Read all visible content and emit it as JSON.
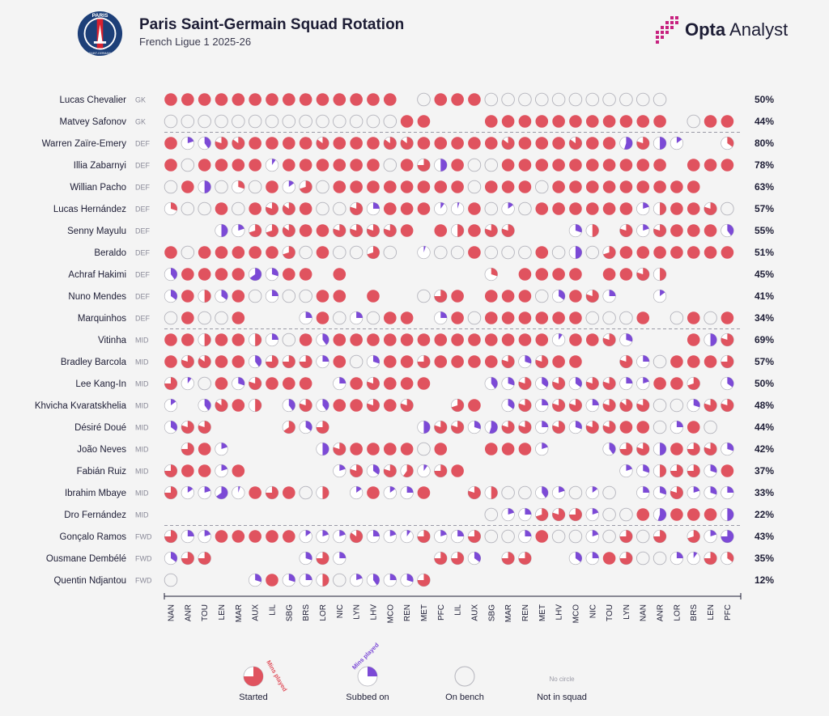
{
  "header": {
    "title": "Paris Saint-Germain Squad Rotation",
    "subtitle": "French Ligue 1 2025-26",
    "brand_bold": "Opta",
    "brand_light": "Analyst",
    "crest_text_top": "PARIS",
    "crest_text_bottom": "SAINT-GERMAIN"
  },
  "colors": {
    "started": "#e0535f",
    "subbed": "#7c4ad6",
    "bench_stroke": "#b4b4bc",
    "separator": "#9a9aa6",
    "crest_blue": "#1d3f78",
    "crest_red": "#d9202e",
    "brand_pink": "#c7217f"
  },
  "legend": {
    "started": "Started",
    "subbed": "Subbed on",
    "bench": "On bench",
    "not_in_squad": "Not in squad",
    "no_circle": "No circle",
    "mins_played": "Mins played"
  },
  "chart_data": {
    "type": "table",
    "matches": [
      "NAN",
      "ANR",
      "TOU",
      "LEN",
      "MAR",
      "AUX",
      "LIL",
      "SBG",
      "BRS",
      "LOR",
      "NIC",
      "LYN",
      "LHV",
      "MCO",
      "REN",
      "MET",
      "PFC",
      "LIL",
      "AUX",
      "SBG",
      "MAR",
      "REN",
      "MET",
      "LHV",
      "MCO",
      "NIC",
      "TOU",
      "LYN",
      "NAN",
      "ANR",
      "LOR",
      "BRS",
      "LEN",
      "PFC"
    ],
    "cell_encoding": "S=started (full), S75=started fraction, U30=subbed on fraction, B=on bench, -=not in squad",
    "players": [
      {
        "name": "Lucas Chevalier",
        "pos": "GK",
        "pct": "50%",
        "cells": [
          "S",
          "S",
          "S",
          "S",
          "S",
          "S",
          "S",
          "S",
          "S",
          "S",
          "S",
          "S",
          "S",
          "S",
          "-",
          "B",
          "S",
          "S",
          "S",
          "B",
          "B",
          "B",
          "B",
          "B",
          "B",
          "B",
          "B",
          "B",
          "B",
          "B",
          "-",
          "-",
          "-",
          "-"
        ]
      },
      {
        "name": "Matvey Safonov",
        "pos": "GK",
        "pct": "44%",
        "cells": [
          "B",
          "B",
          "B",
          "B",
          "B",
          "B",
          "B",
          "B",
          "B",
          "B",
          "B",
          "B",
          "B",
          "B",
          "S",
          "S",
          "-",
          "-",
          "-",
          "S",
          "S",
          "S",
          "S",
          "S",
          "S",
          "S",
          "S",
          "S",
          "S",
          "S",
          "-",
          "B",
          "S",
          "S"
        ]
      },
      {
        "name": "Warren Zaïre-Emery",
        "pos": "DEF",
        "pct": "80%",
        "cells": [
          "S",
          "U20",
          "U40",
          "S80",
          "S85",
          "S",
          "S",
          "S",
          "S",
          "S85",
          "S",
          "S",
          "S",
          "S85",
          "S85",
          "S",
          "S",
          "S",
          "S",
          "S",
          "S85",
          "S",
          "S",
          "S",
          "S85",
          "S",
          "S",
          "U55",
          "S80",
          "U50",
          "U15",
          "-",
          "-",
          "S35"
        ]
      },
      {
        "name": "Illia Zabarnyi",
        "pos": "DEF",
        "pct": "78%",
        "cells": [
          "S",
          "B",
          "S",
          "S",
          "S",
          "S",
          "U10",
          "S",
          "S",
          "S",
          "S",
          "S",
          "S",
          "B",
          "S",
          "S75",
          "U50",
          "S",
          "B",
          "B",
          "S",
          "S",
          "S",
          "S",
          "S",
          "S",
          "S",
          "S",
          "S",
          "S",
          "-",
          "S",
          "S",
          "S"
        ]
      },
      {
        "name": "Willian Pacho",
        "pos": "DEF",
        "pct": "63%",
        "cells": [
          "B",
          "S",
          "U50",
          "B",
          "S30",
          "B",
          "S",
          "U15",
          "S70",
          "B",
          "S",
          "S",
          "S",
          "S",
          "S",
          "S",
          "S",
          "S",
          "B",
          "S",
          "S",
          "S",
          "B",
          "S",
          "S",
          "S",
          "S",
          "S",
          "S",
          "S",
          "S",
          "S",
          "-",
          "-"
        ]
      },
      {
        "name": "Lucas Hernández",
        "pos": "DEF",
        "pct": "57%",
        "cells": [
          "S30",
          "B",
          "B",
          "S",
          "B",
          "S",
          "S80",
          "S85",
          "S",
          "B",
          "B",
          "S80",
          "U25",
          "S",
          "S",
          "S",
          "U10",
          "U5",
          "S",
          "B",
          "U15",
          "B",
          "S",
          "S",
          "S",
          "S",
          "S",
          "S",
          "U20",
          "S50",
          "S",
          "S",
          "S80",
          "B"
        ]
      },
      {
        "name": "Senny Mayulu",
        "pos": "DEF",
        "pct": "55%",
        "cells": [
          "-",
          "-",
          "-",
          "U50",
          "U20",
          "S70",
          "S70",
          "S85",
          "S",
          "S",
          "S80",
          "S80",
          "S80",
          "S80",
          "S",
          "-",
          "S",
          "S50",
          "S",
          "S80",
          "S80",
          "-",
          "-",
          "-",
          "U30",
          "S50",
          "-",
          "S80",
          "U20",
          "S80",
          "S",
          "S",
          "S",
          "U40"
        ]
      },
      {
        "name": "Beraldo",
        "pos": "DEF",
        "pct": "51%",
        "cells": [
          "S",
          "B",
          "S",
          "S",
          "S",
          "S",
          "S",
          "S70",
          "B",
          "S",
          "B",
          "B",
          "S70",
          "B",
          "-",
          "U5",
          "B",
          "B",
          "S",
          "B",
          "B",
          "B",
          "S",
          "B",
          "U50",
          "B",
          "S70",
          "S",
          "S",
          "S",
          "S",
          "S",
          "S",
          "S"
        ]
      },
      {
        "name": "Achraf Hakimi",
        "pos": "DEF",
        "pct": "45%",
        "cells": [
          "U40",
          "S",
          "S",
          "S",
          "S",
          "U65",
          "U30",
          "S",
          "S",
          "-",
          "S",
          "-",
          "-",
          "-",
          "-",
          "-",
          "-",
          "-",
          "-",
          "S30",
          "-",
          "S",
          "S",
          "S",
          "S",
          "-",
          "S",
          "S",
          "S80",
          "S50",
          "-",
          "-",
          "-",
          "-"
        ]
      },
      {
        "name": "Nuno Mendes",
        "pos": "DEF",
        "pct": "41%",
        "cells": [
          "U35",
          "S",
          "S50",
          "U35",
          "S",
          "B",
          "U25",
          "B",
          "B",
          "S",
          "S",
          "-",
          "S",
          "-",
          "-",
          "B",
          "S75",
          "S",
          "-",
          "S",
          "S",
          "S",
          "B",
          "U35",
          "S",
          "S80",
          "U25",
          "-",
          "-",
          "U15",
          "-",
          "-",
          "-",
          "-"
        ]
      },
      {
        "name": "Marquinhos",
        "pos": "DEF",
        "pct": "34%",
        "cells": [
          "B",
          "S",
          "B",
          "B",
          "S",
          "-",
          "-",
          "-",
          "U25",
          "S",
          "B",
          "U25",
          "B",
          "S",
          "S",
          "-",
          "U25",
          "S",
          "B",
          "S",
          "S",
          "S",
          "S",
          "S",
          "S",
          "B",
          "B",
          "B",
          "S",
          "-",
          "B",
          "S",
          "B",
          "S"
        ]
      },
      {
        "name": "Vitinha",
        "pos": "MID",
        "pct": "69%",
        "cells": [
          "S",
          "S",
          "S50",
          "S",
          "S",
          "S50",
          "U25",
          "B",
          "S",
          "U40",
          "S",
          "S",
          "S",
          "S",
          "S",
          "S",
          "S",
          "S",
          "S",
          "S",
          "S",
          "S",
          "S",
          "U10",
          "S",
          "S",
          "S80",
          "U30",
          "-",
          "-",
          "-",
          "S",
          "U50",
          "S80"
        ]
      },
      {
        "name": "Bradley Barcola",
        "pos": "MID",
        "pct": "57%",
        "cells": [
          "S",
          "S80",
          "S85",
          "S",
          "S",
          "U40",
          "S75",
          "S75",
          "S75",
          "U25",
          "S",
          "B",
          "U30",
          "S",
          "S",
          "S75",
          "S",
          "S",
          "S",
          "S",
          "S80",
          "U30",
          "S80",
          "S",
          "S",
          "-",
          "-",
          "S80",
          "U25",
          "B",
          "S",
          "S",
          "S",
          "S75"
        ]
      },
      {
        "name": "Lee Kang-In",
        "pos": "MID",
        "pct": "50%",
        "cells": [
          "S75",
          "U10",
          "B",
          "S",
          "U30",
          "S80",
          "S",
          "S",
          "S",
          "-",
          "U25",
          "S",
          "S80",
          "S",
          "S",
          "S",
          "-",
          "-",
          "-",
          "U40",
          "U30",
          "S80",
          "U35",
          "S80",
          "U35",
          "S80",
          "S80",
          "U25",
          "U20",
          "S",
          "S",
          "S70",
          "-",
          "U35"
        ]
      },
      {
        "name": "Khvicha Kvaratskhelia",
        "pos": "MID",
        "pct": "48%",
        "cells": [
          "U15",
          "-",
          "U40",
          "S85",
          "S",
          "S50",
          "-",
          "U40",
          "S80",
          "U40",
          "S",
          "S",
          "S80",
          "S",
          "S80",
          "-",
          "-",
          "S70",
          "S",
          "-",
          "U35",
          "S80",
          "U25",
          "S80",
          "S80",
          "U25",
          "S80",
          "S85",
          "S80",
          "B",
          "B",
          "U30",
          "S80",
          "S80"
        ]
      },
      {
        "name": "Désiré Doué",
        "pos": "MID",
        "pct": "44%",
        "cells": [
          "U35",
          "S80",
          "S80",
          "-",
          "-",
          "-",
          "-",
          "S65",
          "U35",
          "S75",
          "-",
          "-",
          "-",
          "-",
          "-",
          "U50",
          "S80",
          "S80",
          "U30",
          "U55",
          "S80",
          "S80",
          "U25",
          "S80",
          "U30",
          "S80",
          "S80",
          "S",
          "S",
          "B",
          "U25",
          "S",
          "B",
          "-"
        ]
      },
      {
        "name": "João Neves",
        "pos": "MID",
        "pct": "42%",
        "cells": [
          "-",
          "S75",
          "S",
          "U20",
          "-",
          "-",
          "-",
          "-",
          "-",
          "U50",
          "S80",
          "S",
          "S",
          "S",
          "S",
          "B",
          "S",
          "-",
          "-",
          "S",
          "S",
          "S",
          "U20",
          "-",
          "-",
          "-",
          "U40",
          "S75",
          "S80",
          "U50",
          "S",
          "S75",
          "S80",
          "U30"
        ]
      },
      {
        "name": "Fabián Ruiz",
        "pos": "MID",
        "pct": "37%",
        "cells": [
          "S75",
          "S",
          "S",
          "U20",
          "S",
          "-",
          "-",
          "-",
          "-",
          "-",
          "U20",
          "S80",
          "U35",
          "S80",
          "S60",
          "U10",
          "S75",
          "S",
          "-",
          "-",
          "-",
          "-",
          "-",
          "-",
          "-",
          "-",
          "-",
          "U20",
          "U30",
          "S50",
          "S75",
          "S75",
          "U30",
          "S"
        ]
      },
      {
        "name": "Ibrahim Mbaye",
        "pos": "MID",
        "pct": "33%",
        "cells": [
          "S75",
          "U15",
          "U20",
          "U65",
          "U5",
          "S",
          "S75",
          "S",
          "B",
          "S50",
          "-",
          "U15",
          "S",
          "U15",
          "U25",
          "S",
          "-",
          "-",
          "S80",
          "S50",
          "B",
          "B",
          "U40",
          "U20",
          "B",
          "U15",
          "B",
          "-",
          "U25",
          "U30",
          "S80",
          "U20",
          "U30",
          "U25"
        ]
      },
      {
        "name": "Dro Fernández",
        "pos": "MID",
        "pct": "22%",
        "cells": [
          "-",
          "-",
          "-",
          "-",
          "-",
          "-",
          "-",
          "-",
          "-",
          "-",
          "-",
          "-",
          "-",
          "-",
          "-",
          "-",
          "-",
          "-",
          "-",
          "B",
          "U20",
          "U25",
          "S70",
          "S80",
          "S75",
          "U20",
          "B",
          "B",
          "S",
          "U55",
          "S",
          "S",
          "S",
          "U50"
        ]
      },
      {
        "name": "Gonçalo Ramos",
        "pos": "FWD",
        "pct": "43%",
        "cells": [
          "S75",
          "U25",
          "U20",
          "S",
          "S",
          "S",
          "S",
          "S",
          "U15",
          "U20",
          "U20",
          "S85",
          "U25",
          "U20",
          "U10",
          "S75",
          "U20",
          "U25",
          "S75",
          "B",
          "B",
          "U25",
          "S",
          "B",
          "B",
          "U20",
          "B",
          "S75",
          "B",
          "S75",
          "-",
          "S70",
          "U20",
          "U75"
        ]
      },
      {
        "name": "Ousmane Dembélé",
        "pos": "FWD",
        "pct": "35%",
        "cells": [
          "U35",
          "S75",
          "S75",
          "-",
          "-",
          "-",
          "-",
          "-",
          "U30",
          "S75",
          "U25",
          "-",
          "-",
          "-",
          "-",
          "-",
          "S75",
          "S75",
          "U35",
          "-",
          "S75",
          "S75",
          "-",
          "-",
          "U35",
          "U25",
          "S",
          "S75",
          "B",
          "B",
          "U25",
          "U10",
          "S75",
          "S35"
        ]
      },
      {
        "name": "Quentin Ndjantou",
        "pos": "FWD",
        "pct": "12%",
        "cells": [
          "B",
          "-",
          "-",
          "-",
          "-",
          "U30",
          "S",
          "U30",
          "U25",
          "S50",
          "B",
          "U20",
          "U40",
          "U25",
          "U30",
          "S75",
          "-",
          "-",
          "-",
          "-",
          "-",
          "-",
          "-",
          "-",
          "-",
          "-",
          "-",
          "-",
          "-",
          "-",
          "-",
          "-",
          "-",
          "-"
        ]
      }
    ]
  }
}
